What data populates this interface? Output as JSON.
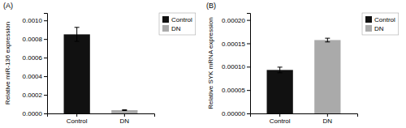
{
  "chart_data": [
    {
      "type": "bar",
      "title": "(A)",
      "categories": [
        "Control",
        "DN"
      ],
      "values": [
        0.00085,
        3.5e-05
      ],
      "errors": [
        7.5e-05,
        4e-06
      ],
      "colors": [
        "#111111",
        "#aaaaaa"
      ],
      "ylabel": "Relative miR-136 expression",
      "ylim": [
        0,
        0.00108
      ],
      "yticks": [
        {
          "value": 0.0,
          "label": "0.0000"
        },
        {
          "value": 0.0002,
          "label": "0.0002"
        },
        {
          "value": 0.0004,
          "label": "0.0004"
        },
        {
          "value": 0.0006,
          "label": "0.0006"
        },
        {
          "value": 0.0008,
          "label": "0.0008"
        },
        {
          "value": 0.001,
          "label": "0.0010"
        }
      ],
      "legend": "upper right"
    },
    {
      "type": "bar",
      "title": "(B)",
      "categories": [
        "Control",
        "DN"
      ],
      "values": [
        9.3e-05,
        0.000157
      ],
      "errors": [
        6e-06,
        4e-06
      ],
      "colors": [
        "#111111",
        "#aaaaaa"
      ],
      "ylabel": "Relative SYK mRNA expression",
      "ylim": [
        0,
        0.000215
      ],
      "yticks": [
        {
          "value": 0.0,
          "label": "0.00000"
        },
        {
          "value": 5e-05,
          "label": "0.00005"
        },
        {
          "value": 0.0001,
          "label": "0.00010"
        },
        {
          "value": 0.00015,
          "label": "0.00015"
        },
        {
          "value": 0.0002,
          "label": "0.00020"
        }
      ],
      "legend": "upper right"
    }
  ]
}
